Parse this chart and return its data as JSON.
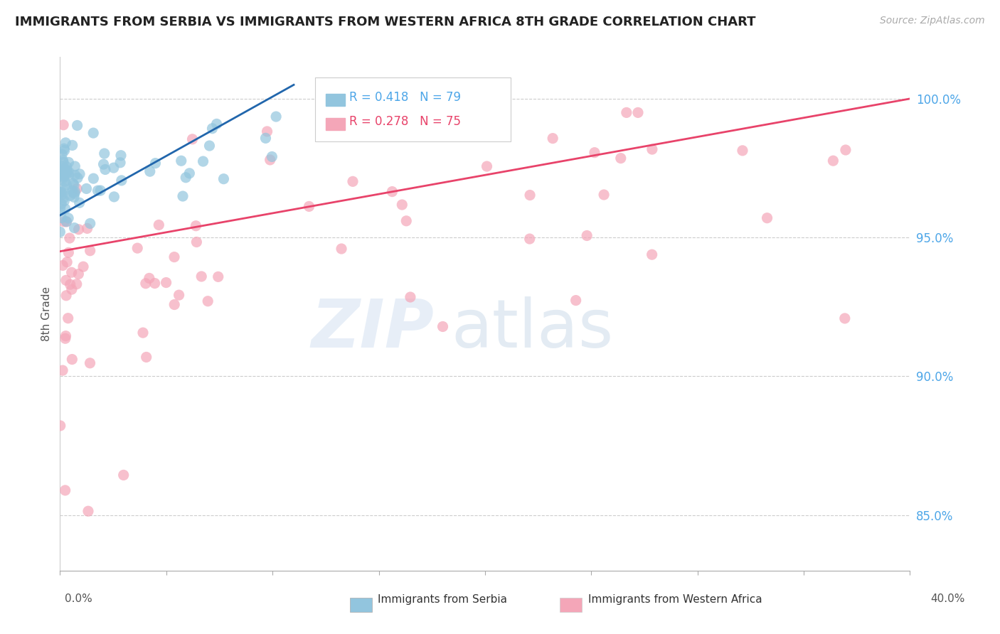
{
  "title": "IMMIGRANTS FROM SERBIA VS IMMIGRANTS FROM WESTERN AFRICA 8TH GRADE CORRELATION CHART",
  "source": "Source: ZipAtlas.com",
  "ylabel": "8th Grade",
  "r_serbia": 0.418,
  "n_serbia": 79,
  "r_western_africa": 0.278,
  "n_western_africa": 75,
  "serbia_color": "#92c5de",
  "western_africa_color": "#f4a6b8",
  "serbia_line_color": "#2166ac",
  "western_africa_line_color": "#e8436a",
  "legend_serbia": "Immigrants from Serbia",
  "legend_western_africa": "Immigrants from Western Africa",
  "xmin": 0.0,
  "xmax": 40.0,
  "ymin": 83.0,
  "ymax": 101.5,
  "yticks": [
    85.0,
    90.0,
    95.0,
    100.0
  ],
  "ytick_labels": [
    "85.0%",
    "90.0%",
    "95.0%",
    "100.0%"
  ],
  "tick_color": "#4da6e8",
  "serbia_trend_x": [
    0.0,
    11.0
  ],
  "serbia_trend_y": [
    95.8,
    100.5
  ],
  "waf_trend_x": [
    0.0,
    40.0
  ],
  "waf_trend_y": [
    94.5,
    100.0
  ]
}
